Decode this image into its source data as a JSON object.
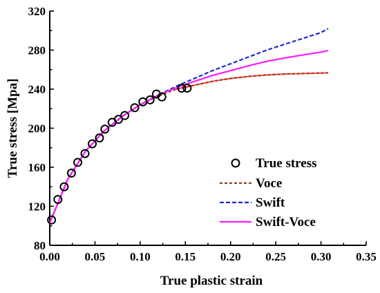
{
  "chart_data": {
    "type": "line",
    "xlabel": "True plastic strain",
    "ylabel": "True stress [Mpa]",
    "xlim": [
      0.0,
      0.35
    ],
    "ylim": [
      80,
      320
    ],
    "xticks": [
      "0.00",
      "0.05",
      "0.10",
      "0.15",
      "0.20",
      "0.25",
      "0.30",
      "0.35"
    ],
    "yticks": [
      "80",
      "120",
      "160",
      "200",
      "240",
      "280",
      "320"
    ],
    "grid": false,
    "legend_position": "bottom-right",
    "series": [
      {
        "name": "True stress",
        "style": "markers",
        "color": "#000000",
        "x": [
          0.002,
          0.009,
          0.016,
          0.024,
          0.031,
          0.039,
          0.047,
          0.055,
          0.061,
          0.069,
          0.076,
          0.083,
          0.094,
          0.103,
          0.111,
          0.118,
          0.124,
          0.146,
          0.152
        ],
        "y": [
          106,
          127,
          140,
          154,
          165,
          174,
          184,
          190,
          199,
          206,
          209,
          213,
          221,
          227,
          229,
          235,
          232,
          241,
          241
        ]
      },
      {
        "name": "Voce",
        "style": "dotted",
        "color": "#8B3A1A",
        "x": [
          0.0,
          0.02,
          0.04,
          0.06,
          0.08,
          0.1,
          0.12,
          0.14,
          0.16,
          0.18,
          0.2,
          0.22,
          0.24,
          0.26,
          0.28,
          0.3,
          0.308
        ],
        "y": [
          103,
          148,
          177,
          197,
          212,
          224,
          233,
          240,
          244,
          248,
          251,
          253,
          254.5,
          255.5,
          256,
          256.5,
          256.7
        ]
      },
      {
        "name": "Swift",
        "style": "dashed",
        "color": "#1A2ACC",
        "x": [
          0.0,
          0.02,
          0.04,
          0.06,
          0.08,
          0.1,
          0.12,
          0.14,
          0.16,
          0.18,
          0.2,
          0.22,
          0.24,
          0.26,
          0.28,
          0.3,
          0.308
        ],
        "y": [
          103,
          148,
          177,
          197,
          212,
          224,
          234,
          243,
          251,
          259,
          266,
          273,
          280,
          286,
          292,
          298,
          302
        ]
      },
      {
        "name": "Swift-Voce",
        "style": "solid",
        "color": "#FF1AFF",
        "x": [
          0.0,
          0.02,
          0.04,
          0.06,
          0.08,
          0.1,
          0.12,
          0.14,
          0.16,
          0.18,
          0.2,
          0.22,
          0.24,
          0.26,
          0.28,
          0.3,
          0.308
        ],
        "y": [
          103,
          148,
          177,
          197,
          212,
          224,
          234,
          241.5,
          248,
          254,
          259,
          264,
          268.5,
          272,
          275,
          278,
          279.5
        ]
      }
    ],
    "voce_highlight_color": "#E8281E"
  }
}
